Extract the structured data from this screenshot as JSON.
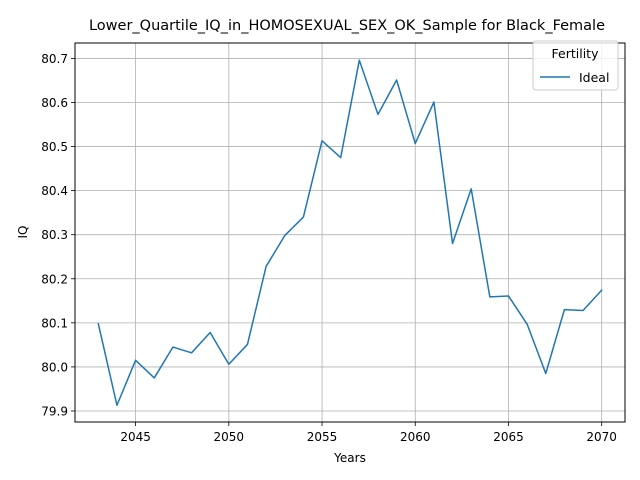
{
  "chart_data": {
    "type": "line",
    "title": "Lower_Quartile_IQ_in_HOMOSEXUAL_SEX_OK_Sample for Black_Female",
    "xlabel": "Years",
    "ylabel": "IQ",
    "xlim": [
      2041.75,
      2071.25
    ],
    "ylim": [
      79.875,
      80.735
    ],
    "xticks": [
      2045,
      2050,
      2055,
      2060,
      2065,
      2070
    ],
    "yticks": [
      79.9,
      80.0,
      80.1,
      80.2,
      80.3,
      80.4,
      80.5,
      80.6,
      80.7
    ],
    "grid": true,
    "legend": {
      "title": "Fertility",
      "placement": "top-right"
    },
    "series": [
      {
        "name": "Ideal",
        "color": "#1f77b4",
        "x": [
          2043,
          2044,
          2045,
          2046,
          2047,
          2048,
          2049,
          2050,
          2051,
          2052,
          2053,
          2054,
          2055,
          2056,
          2057,
          2058,
          2059,
          2060,
          2061,
          2062,
          2063,
          2064,
          2065,
          2066,
          2067,
          2068,
          2069,
          2070
        ],
        "values": [
          80.098,
          79.913,
          80.015,
          79.975,
          80.045,
          80.032,
          80.078,
          80.006,
          80.051,
          80.228,
          80.298,
          80.34,
          80.513,
          80.475,
          80.696,
          80.573,
          80.651,
          80.507,
          80.601,
          80.28,
          80.404,
          80.159,
          80.161,
          80.097,
          79.985,
          80.13,
          80.128,
          80.174
        ]
      }
    ]
  }
}
